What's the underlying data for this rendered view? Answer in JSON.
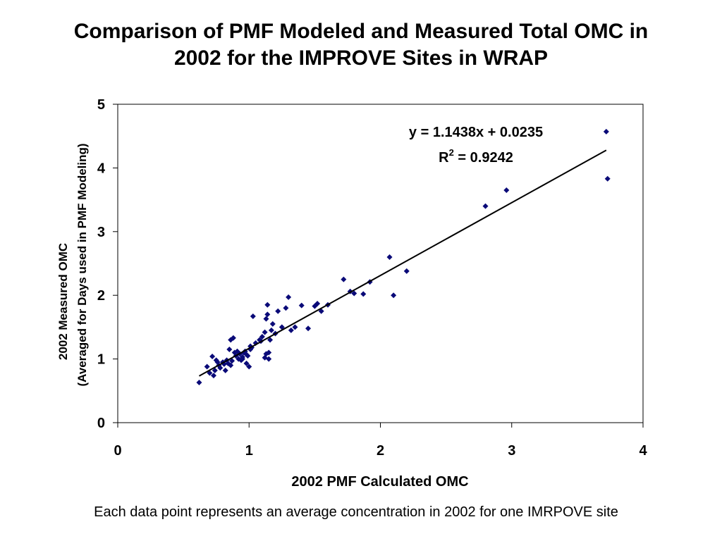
{
  "title": {
    "line1": "Comparison of PMF Modeled and Measured Total OMC in",
    "line2": "2002 for the IMPROVE Sites in WRAP"
  },
  "caption": "Each data point represents an average concentration in 2002 for one IMRPOVE site",
  "colors": {
    "points": "#0a0a78",
    "trendline": "#000000",
    "axes": "#000000"
  },
  "chart_data": {
    "type": "scatter",
    "title": "",
    "xlabel": "2002 PMF Calculated OMC",
    "ylabel_line1": "2002 Measured OMC",
    "ylabel_line2": "(Averaged for Days used in PMF Modeling)",
    "xlim": [
      0,
      4
    ],
    "ylim": [
      0,
      5
    ],
    "xticks": [
      0,
      1,
      2,
      3,
      4
    ],
    "yticks": [
      0,
      1,
      2,
      3,
      4,
      5
    ],
    "grid": false,
    "marker": "diamond",
    "trendline": {
      "slope": 1.1438,
      "intercept": 0.0235,
      "x_range": [
        0.62,
        3.72
      ]
    },
    "equation": "y = 1.1438x + 0.0235",
    "r2_prefix": "R",
    "r2_sup": "2",
    "r2_suffix": " = 0.9242",
    "series": [
      {
        "x": [
          0.62,
          0.68,
          0.7,
          0.72,
          0.73,
          0.74,
          0.75,
          0.76,
          0.77,
          0.78,
          0.8,
          0.81,
          0.82,
          0.83,
          0.84,
          0.85,
          0.86,
          0.86,
          0.87,
          0.88,
          0.89,
          0.9,
          0.91,
          0.92,
          0.93,
          0.94,
          0.95,
          0.96,
          0.97,
          0.98,
          0.99,
          1.0,
          1.01,
          1.02,
          1.03,
          0.98,
          0.95,
          1.01,
          1.05,
          1.08,
          1.09,
          1.1,
          1.12,
          1.13,
          1.14,
          1.15,
          1.16,
          1.17,
          1.18,
          1.12,
          1.13,
          1.14,
          1.15,
          1.2,
          1.22,
          1.25,
          1.28,
          1.3,
          1.32,
          1.35,
          1.4,
          1.45,
          1.5,
          1.52,
          1.55,
          1.6,
          1.72,
          1.77,
          1.8,
          1.87,
          1.92,
          2.07,
          2.1,
          2.2,
          2.8,
          2.96,
          3.72,
          3.73
        ],
        "y": [
          0.63,
          0.88,
          0.78,
          1.04,
          0.74,
          0.82,
          0.98,
          0.95,
          0.9,
          0.86,
          0.95,
          0.92,
          0.82,
          0.98,
          0.93,
          1.15,
          1.3,
          0.9,
          0.97,
          1.33,
          1.1,
          1.05,
          1.12,
          1.0,
          1.08,
          0.98,
          1.03,
          1.1,
          1.12,
          0.93,
          1.05,
          0.88,
          1.2,
          1.18,
          1.67,
          1.07,
          1.0,
          1.15,
          1.25,
          1.3,
          1.28,
          1.35,
          1.42,
          1.63,
          1.7,
          1.1,
          1.3,
          1.45,
          1.55,
          1.02,
          1.08,
          1.85,
          1.0,
          1.4,
          1.75,
          1.5,
          1.8,
          1.97,
          1.45,
          1.5,
          1.84,
          1.48,
          1.83,
          1.87,
          1.75,
          1.85,
          2.25,
          2.06,
          2.03,
          2.02,
          2.21,
          2.6,
          2.0,
          2.38,
          3.4,
          3.65,
          4.57,
          3.83
        ]
      }
    ]
  }
}
